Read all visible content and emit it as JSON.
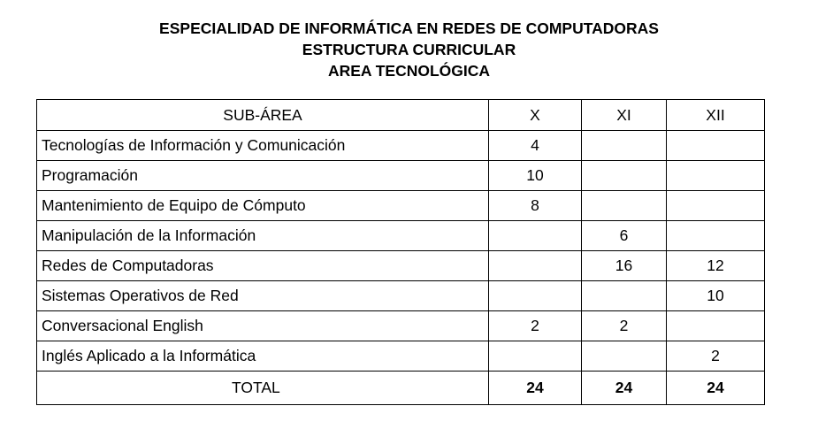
{
  "header": {
    "line1": "ESPECIALIDAD DE INFORMÁTICA EN REDES DE COMPUTADORAS",
    "line2": "ESTRUCTURA CURRICULAR",
    "line3": "AREA TECNOLÓGICA"
  },
  "table": {
    "columns": [
      "SUB-ÁREA",
      "X",
      "XI",
      "XII"
    ],
    "rows": [
      {
        "subarea": "Tecnologías de Información y Comunicación",
        "x": "4",
        "xi": "",
        "xii": ""
      },
      {
        "subarea": "Programación",
        "x": "10",
        "xi": "",
        "xii": ""
      },
      {
        "subarea": "Mantenimiento de Equipo de Cómputo",
        "x": "8",
        "xi": "",
        "xii": ""
      },
      {
        "subarea": "Manipulación de la Información",
        "x": "",
        "xi": "6",
        "xii": ""
      },
      {
        "subarea": "Redes de Computadoras",
        "x": "",
        "xi": "16",
        "xii": "12"
      },
      {
        "subarea": "Sistemas Operativos de Red",
        "x": "",
        "xi": "",
        "xii": "10"
      },
      {
        "subarea": "Conversacional English",
        "x": "2",
        "xi": "2",
        "xii": ""
      },
      {
        "subarea": "Inglés Aplicado a la Informática",
        "x": "",
        "xi": "",
        "xii": "2"
      }
    ],
    "total": {
      "label": "TOTAL",
      "x": "24",
      "xi": "24",
      "xii": "24"
    }
  }
}
